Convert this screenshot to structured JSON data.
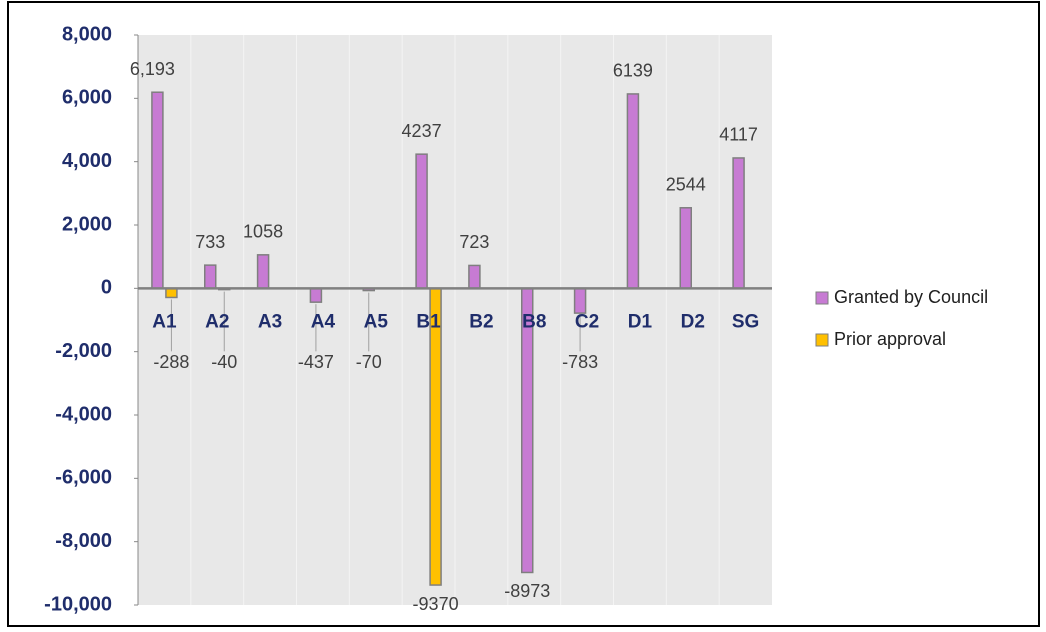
{
  "chart_data": {
    "type": "bar",
    "categories": [
      "A1",
      "A2",
      "A3",
      "A4",
      "A5",
      "B1",
      "B2",
      "B8",
      "C2",
      "D1",
      "D2",
      "SG"
    ],
    "series": [
      {
        "name": "Granted by Council",
        "color": "#c77bd3",
        "values": [
          6193,
          733,
          1058,
          -437,
          -70,
          4237,
          723,
          -8973,
          -783,
          6139,
          2544,
          4117
        ],
        "value_labels": [
          "6,193",
          "733",
          "1058",
          "-437",
          "-70",
          "4237",
          "723",
          "-8973",
          "-783",
          "6139",
          "2544",
          "4117"
        ]
      },
      {
        "name": "Prior approval",
        "color": "#ffc000",
        "values": [
          -288,
          -40,
          null,
          null,
          null,
          -9370,
          null,
          null,
          null,
          null,
          null,
          null
        ],
        "value_labels": [
          "-288",
          "-40",
          null,
          null,
          null,
          "-9370",
          null,
          null,
          null,
          null,
          null,
          null
        ]
      }
    ],
    "ylim": [
      -10000,
      8000
    ],
    "yticks": [
      {
        "value": -10000,
        "label": "-10,000"
      },
      {
        "value": -8000,
        "label": "-8,000"
      },
      {
        "value": -6000,
        "label": "-6,000"
      },
      {
        "value": -4000,
        "label": "-4,000"
      },
      {
        "value": -2000,
        "label": "-2,000"
      },
      0,
      {
        "value": 2000,
        "label": "2,000"
      },
      {
        "value": 4000,
        "label": "4,000"
      },
      {
        "value": 6000,
        "label": "6,000"
      },
      {
        "value": 8000,
        "label": "8,000"
      }
    ],
    "legend": "right"
  }
}
